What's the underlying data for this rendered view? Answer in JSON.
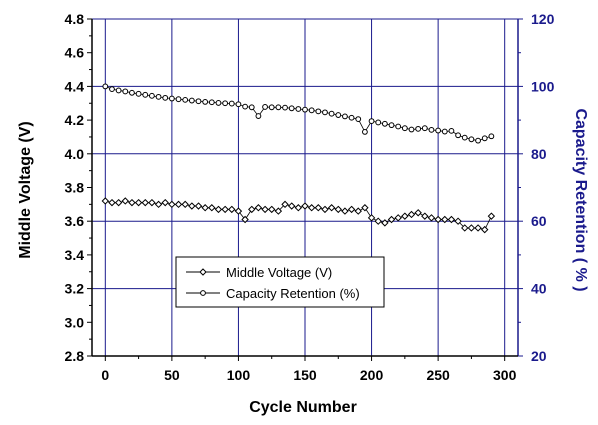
{
  "chart_data": {
    "type": "line",
    "xlabel": "Cycle Number",
    "ylabel_left": "Middle Voltage (V)",
    "ylabel_right": "Capacity Retention ( % )",
    "xlim": [
      -10,
      310
    ],
    "ylim_left": [
      2.8,
      4.8
    ],
    "ylim_right": [
      20,
      120
    ],
    "x_ticks": [
      0,
      50,
      100,
      150,
      200,
      250,
      300
    ],
    "y_left_ticks": [
      2.8,
      3.0,
      3.2,
      3.4,
      3.6,
      3.8,
      4.0,
      4.2,
      4.4,
      4.6,
      4.8
    ],
    "y_right_ticks": [
      20,
      40,
      60,
      80,
      100,
      120
    ],
    "grid": true,
    "legend_position": "lower-left",
    "colors": {
      "plot_frame": "#1a1a8c",
      "grid": "#1a1a8c",
      "right_axis": "#1a1a8c",
      "series": "#000000"
    },
    "series": [
      {
        "name": "Middle Voltage (V)",
        "axis": "left",
        "marker": "diamond",
        "x": [
          0,
          5,
          10,
          15,
          20,
          25,
          30,
          35,
          40,
          45,
          50,
          55,
          60,
          65,
          70,
          75,
          80,
          85,
          90,
          95,
          100,
          105,
          110,
          115,
          120,
          125,
          130,
          135,
          140,
          145,
          150,
          155,
          160,
          165,
          170,
          175,
          180,
          185,
          190,
          195,
          200,
          205,
          210,
          215,
          220,
          225,
          230,
          235,
          240,
          245,
          250,
          255,
          260,
          265,
          270,
          275,
          280,
          285,
          290
        ],
        "y": [
          3.72,
          3.71,
          3.71,
          3.72,
          3.71,
          3.71,
          3.71,
          3.71,
          3.7,
          3.71,
          3.7,
          3.7,
          3.7,
          3.69,
          3.69,
          3.68,
          3.68,
          3.67,
          3.67,
          3.67,
          3.66,
          3.61,
          3.67,
          3.68,
          3.67,
          3.67,
          3.66,
          3.7,
          3.69,
          3.68,
          3.69,
          3.68,
          3.68,
          3.67,
          3.68,
          3.67,
          3.66,
          3.67,
          3.66,
          3.68,
          3.62,
          3.6,
          3.59,
          3.61,
          3.62,
          3.63,
          3.64,
          3.65,
          3.63,
          3.62,
          3.61,
          3.61,
          3.61,
          3.6,
          3.56,
          3.56,
          3.56,
          3.55,
          3.63
        ]
      },
      {
        "name": "Capacity Retention (%)",
        "axis": "right",
        "marker": "circle",
        "x": [
          0,
          5,
          10,
          15,
          20,
          25,
          30,
          35,
          40,
          45,
          50,
          55,
          60,
          65,
          70,
          75,
          80,
          85,
          90,
          95,
          100,
          105,
          110,
          115,
          120,
          125,
          130,
          135,
          140,
          145,
          150,
          155,
          160,
          165,
          170,
          175,
          180,
          185,
          190,
          195,
          200,
          205,
          210,
          215,
          220,
          225,
          230,
          235,
          240,
          245,
          250,
          255,
          260,
          265,
          270,
          275,
          280,
          285,
          290
        ],
        "y": [
          100.0,
          99.2,
          98.8,
          98.5,
          98.1,
          97.8,
          97.5,
          97.2,
          96.9,
          96.6,
          96.4,
          96.2,
          96.0,
          95.8,
          95.6,
          95.4,
          95.3,
          95.1,
          95.0,
          94.9,
          94.7,
          94.0,
          93.8,
          91.2,
          93.9,
          93.8,
          93.8,
          93.7,
          93.5,
          93.3,
          93.1,
          92.9,
          92.6,
          92.3,
          91.9,
          91.5,
          91.1,
          90.7,
          90.3,
          86.5,
          89.7,
          89.3,
          88.9,
          88.5,
          88.1,
          87.6,
          87.2,
          87.4,
          87.6,
          87.1,
          86.9,
          86.6,
          86.8,
          85.5,
          84.8,
          84.3,
          83.9,
          84.6,
          85.2
        ]
      }
    ]
  }
}
